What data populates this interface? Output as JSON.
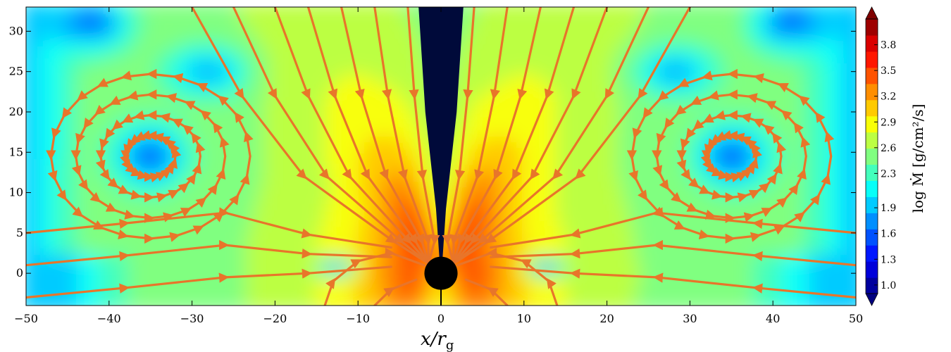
{
  "chart_data": {
    "type": "heatmap",
    "title": "",
    "xlabel": "x/r",
    "xlabel_sub": "g",
    "ylabel": "",
    "xlim": [
      -50,
      50
    ],
    "ylim": [
      -4,
      33
    ],
    "x_ticks": [
      -50,
      -40,
      -30,
      -20,
      -10,
      0,
      10,
      20,
      30,
      40,
      50
    ],
    "x_tick_labels": [
      "−50",
      "−40",
      "−30",
      "−20",
      "−10",
      "0",
      "10",
      "20",
      "30",
      "40",
      "50"
    ],
    "y_ticks": [
      0,
      5,
      10,
      15,
      20,
      25,
      30
    ],
    "y_tick_labels": [
      "0",
      "5",
      "10",
      "15",
      "20",
      "25",
      "30"
    ],
    "colorbar": {
      "label": "log Ṁ [g/cm²/s]",
      "range": [
        0.9,
        4.1
      ],
      "ticks": [
        1.0,
        1.3,
        1.6,
        1.9,
        2.3,
        2.6,
        2.9,
        3.2,
        3.5,
        3.8
      ],
      "tick_labels": [
        "1.0",
        "1.3",
        "1.6",
        "1.9",
        "2.3",
        "2.6",
        "2.9",
        "3.2",
        "3.5",
        "3.8"
      ],
      "extend": "both",
      "colormap": "jet"
    },
    "black_hole": {
      "x": 0,
      "y": 0,
      "radius": 2
    },
    "overlay": "streamlines",
    "streamline_color": "#e8752a",
    "jet_funnel_color": "#000a3a",
    "vortex_centers": [
      {
        "x": -35,
        "y": 14.5
      },
      {
        "x": 35,
        "y": 14.5
      }
    ]
  }
}
